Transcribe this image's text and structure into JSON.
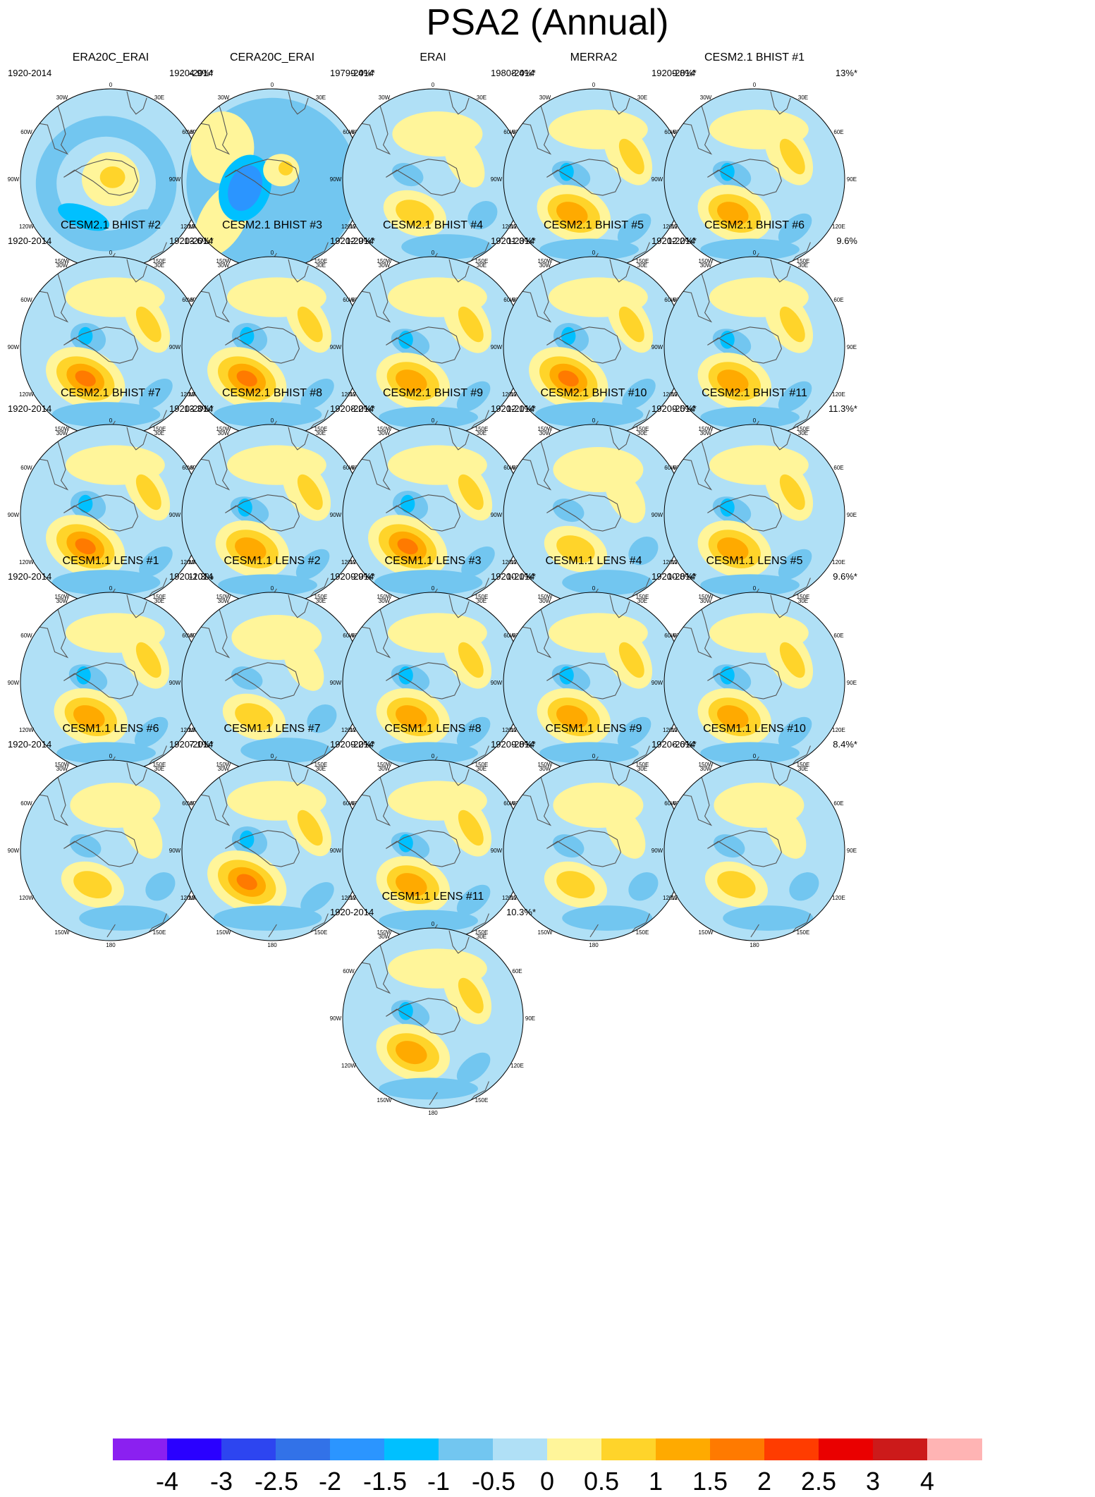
{
  "title": "PSA2 (Annual)",
  "lon_labels": [
    "0",
    "30E",
    "60E",
    "90E",
    "120E",
    "150E",
    "180",
    "150W",
    "120W",
    "90W",
    "60W",
    "30W"
  ],
  "panels": [
    {
      "name": "ERA20C_ERAI",
      "period": "1920-2014",
      "pct": "4.9%*",
      "pattern": "ring"
    },
    {
      "name": "CERA20C_ERAI",
      "period": "1920-2014",
      "pct": "9.4%*",
      "pattern": "cera"
    },
    {
      "name": "ERAI",
      "period": "1979-2014",
      "pct": "8.4%*",
      "pattern": "weak"
    },
    {
      "name": "MERRA2",
      "period": "1980-2014",
      "pct": "9.8%*",
      "pattern": "psa"
    },
    {
      "name": "CESM2.1 BHIST #1",
      "period": "1920-2014",
      "pct": "13%*",
      "pattern": "psa"
    },
    {
      "name": "CESM2.1 BHIST #2",
      "period": "1920-2014",
      "pct": "13.6%*",
      "pattern": "strong"
    },
    {
      "name": "CESM2.1 BHIST #3",
      "period": "1920-2014",
      "pct": "12.9%*",
      "pattern": "strong"
    },
    {
      "name": "CESM2.1 BHIST #4",
      "period": "1920-2014",
      "pct": "11.3%*",
      "pattern": "psa"
    },
    {
      "name": "CESM2.1 BHIST #5",
      "period": "1920-2014",
      "pct": "12.2%*",
      "pattern": "strong"
    },
    {
      "name": "CESM2.1 BHIST #6",
      "period": "1920-2014",
      "pct": "9.6%",
      "pattern": "psa"
    },
    {
      "name": "CESM2.1 BHIST #7",
      "period": "1920-2014",
      "pct": "13.3%*",
      "pattern": "strong"
    },
    {
      "name": "CESM2.1 BHIST #8",
      "period": "1920-2014",
      "pct": "8.2%*",
      "pattern": "psa"
    },
    {
      "name": "CESM2.1 BHIST #9",
      "period": "1920-2014",
      "pct": "12.1%*",
      "pattern": "strong"
    },
    {
      "name": "CESM2.1 BHIST #10",
      "period": "1920-2014",
      "pct": "9.5%*",
      "pattern": "weak"
    },
    {
      "name": "CESM2.1 BHIST #11",
      "period": "1920-2014",
      "pct": "11.3%*",
      "pattern": "psa"
    },
    {
      "name": "CESM1.1 LENS #1",
      "period": "1920-2014",
      "pct": "11.3%",
      "pattern": "psa"
    },
    {
      "name": "CESM1.1 LENS #2",
      "period": "1920-2014",
      "pct": "9.9%*",
      "pattern": "weak"
    },
    {
      "name": "CESM1.1 LENS #3",
      "period": "1920-2014",
      "pct": "10.1%*",
      "pattern": "psa"
    },
    {
      "name": "CESM1.1 LENS #4",
      "period": "1920-2014",
      "pct": "10.8%*",
      "pattern": "psa"
    },
    {
      "name": "CESM1.1 LENS #5",
      "period": "1920-2014",
      "pct": "9.6%*",
      "pattern": "psa"
    },
    {
      "name": "CESM1.1 LENS #6",
      "period": "1920-2014",
      "pct": "7.1%*",
      "pattern": "weak"
    },
    {
      "name": "CESM1.1 LENS #7",
      "period": "1920-2014",
      "pct": "9.2%*",
      "pattern": "strong"
    },
    {
      "name": "CESM1.1 LENS #8",
      "period": "1920-2014",
      "pct": "9.8%*",
      "pattern": "psa"
    },
    {
      "name": "CESM1.1 LENS #9",
      "period": "1920-2014",
      "pct": "6.6%*",
      "pattern": "weak"
    },
    {
      "name": "CESM1.1 LENS #10",
      "period": "1920-2014",
      "pct": "8.4%*",
      "pattern": "weak"
    },
    {
      "name": "CESM1.1 LENS #11",
      "period": "1920-2014",
      "pct": "10.3%*",
      "pattern": "psa"
    }
  ],
  "chart_data": {
    "type": "heatmap",
    "title": "PSA2 (Annual)",
    "projection": "south polar stereographic",
    "colorbar": {
      "levels": [
        -4,
        -3,
        -2.5,
        -2,
        -1.5,
        -1,
        -0.5,
        0,
        0.5,
        1,
        1.5,
        2,
        2.5,
        3,
        4
      ],
      "labels": [
        "-4",
        "-3",
        "-2.5",
        "-2",
        "-1.5",
        "-1",
        "-0.5",
        "0",
        "0.5",
        "1",
        "1.5",
        "2",
        "2.5",
        "3",
        "4"
      ],
      "colors": [
        "#8b20f0",
        "#2a00ff",
        "#2d45f0",
        "#3272e8",
        "#2b95ff",
        "#00c0ff",
        "#72c6f0",
        "#b0e0f6",
        "#fff59a",
        "#ffd42a",
        "#ffaa00",
        "#ff7a00",
        "#ff3c00",
        "#ea0000",
        "#cc1a1a",
        "#ffb4b4"
      ],
      "orientation": "horizontal",
      "placement": "bottom"
    }
  }
}
